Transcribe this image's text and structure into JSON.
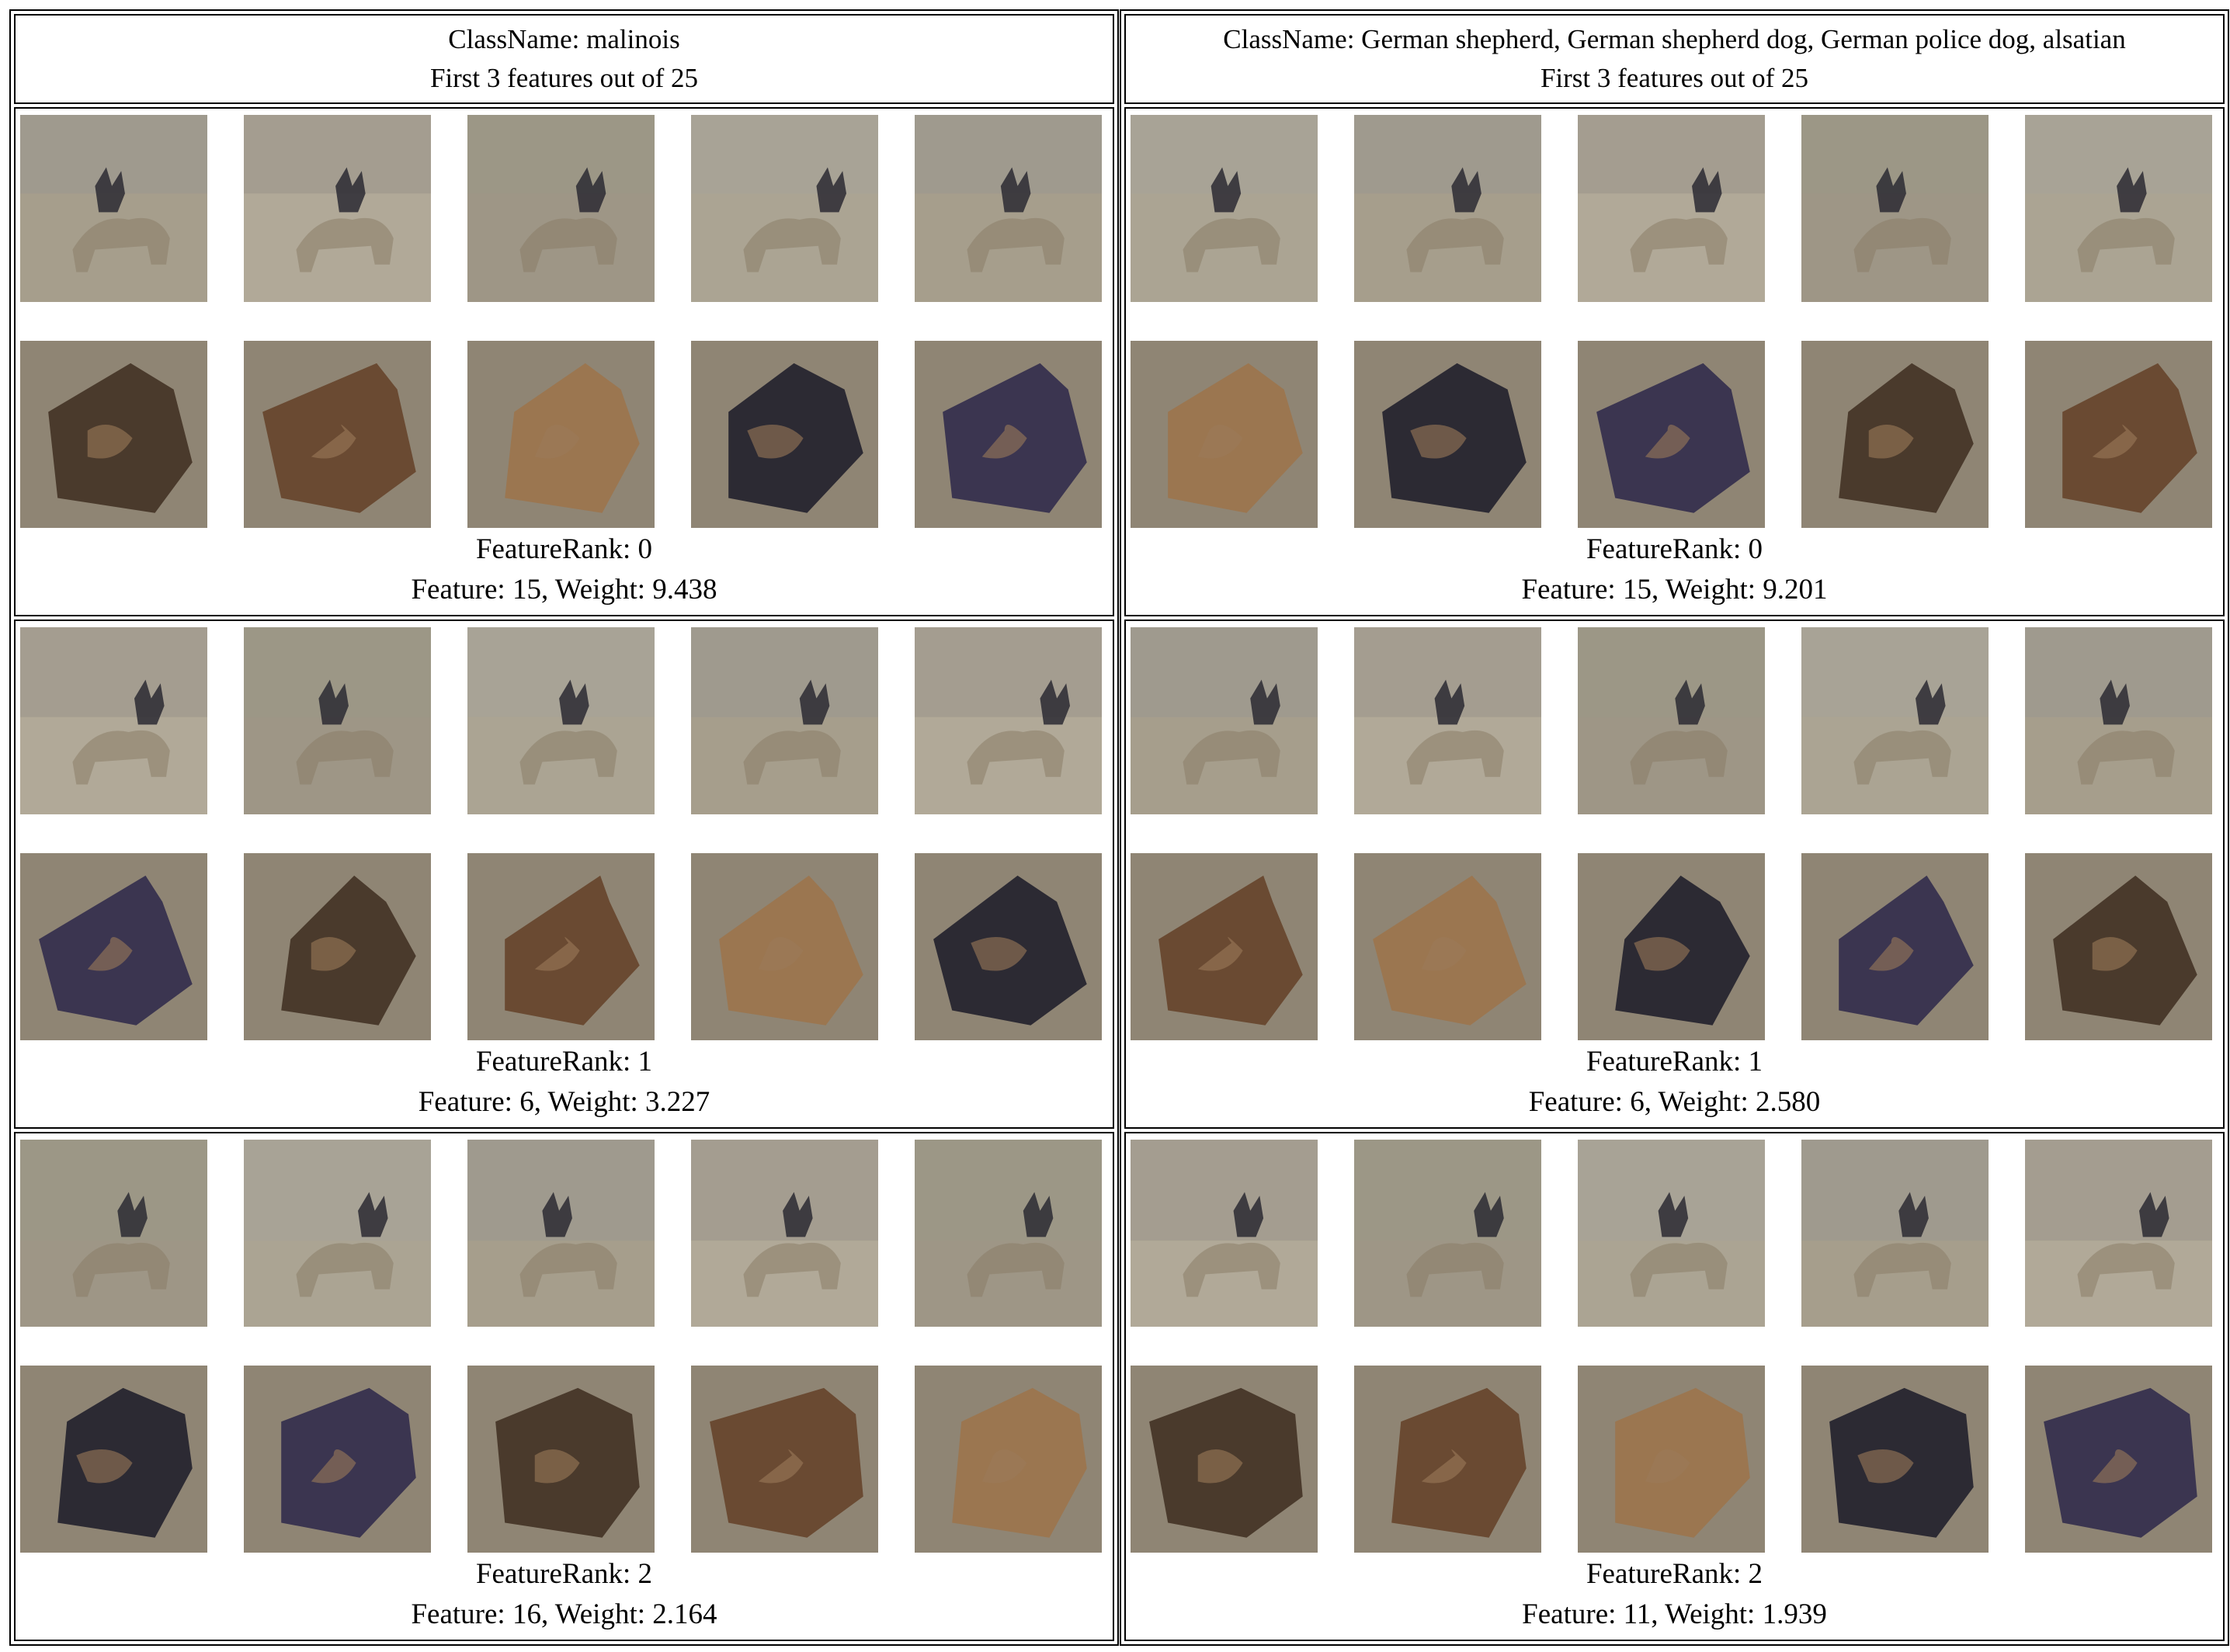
{
  "colors": {
    "faded_background": "#a59e91",
    "mask_background": "#8f8574",
    "dog_dark": "#2c2a33",
    "dog_tan": "#9b7650"
  },
  "panels": [
    {
      "header": {
        "class_line": "ClassName: malinois",
        "features_line": "First 3 features out of 25"
      },
      "features": [
        {
          "rank_line": "FeatureRank: 0",
          "detail_line": "Feature: 15, Weight: 9.438"
        },
        {
          "rank_line": "FeatureRank: 1",
          "detail_line": "Feature: 6, Weight: 3.227"
        },
        {
          "rank_line": "FeatureRank: 2",
          "detail_line": "Feature: 16, Weight: 2.164"
        }
      ]
    },
    {
      "header": {
        "class_line": "ClassName: German shepherd, German shepherd dog, German police dog, alsatian",
        "features_line": "First 3 features out of 25"
      },
      "features": [
        {
          "rank_line": "FeatureRank: 0",
          "detail_line": "Feature: 15, Weight: 9.201"
        },
        {
          "rank_line": "FeatureRank: 1",
          "detail_line": "Feature: 6, Weight: 2.580"
        },
        {
          "rank_line": "FeatureRank: 2",
          "detail_line": "Feature: 11, Weight: 1.939"
        }
      ]
    }
  ]
}
